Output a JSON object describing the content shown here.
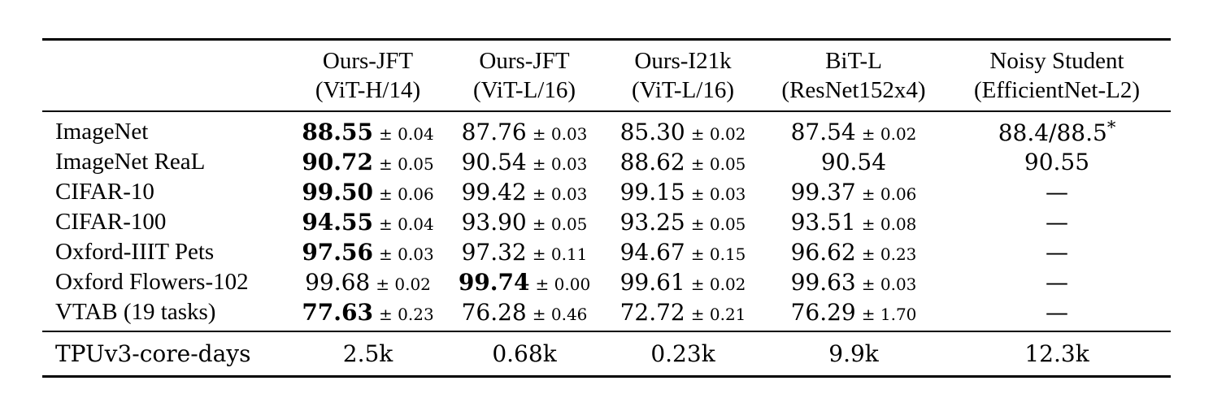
{
  "table": {
    "columns": [
      {
        "line1": "Ours-JFT",
        "line2": "(ViT-H/14)"
      },
      {
        "line1": "Ours-JFT",
        "line2": "(ViT-L/16)"
      },
      {
        "line1": "Ours-I21k",
        "line2": "(ViT-L/16)"
      },
      {
        "line1": "BiT-L",
        "line2": "(ResNet152x4)"
      },
      {
        "line1": "Noisy Student",
        "line2": "(EfficientNet-L2)"
      }
    ],
    "rows": [
      {
        "label": "ImageNet",
        "cells": [
          {
            "main": "88.55",
            "err": "± 0.04",
            "bold": true
          },
          {
            "main": "87.76",
            "err": "± 0.03"
          },
          {
            "main": "85.30",
            "err": "± 0.02"
          },
          {
            "main": "87.54",
            "err": "± 0.02"
          },
          {
            "main": "88.4/88.5",
            "sup": "*"
          }
        ]
      },
      {
        "label": "ImageNet ReaL",
        "cells": [
          {
            "main": "90.72",
            "err": "± 0.05",
            "bold": true
          },
          {
            "main": "90.54",
            "err": "± 0.03"
          },
          {
            "main": "88.62",
            "err": "± 0.05"
          },
          {
            "main": "90.54"
          },
          {
            "main": "90.55"
          }
        ]
      },
      {
        "label": "CIFAR-10",
        "cells": [
          {
            "main": "99.50",
            "err": "± 0.06",
            "bold": true
          },
          {
            "main": "99.42",
            "err": "± 0.03"
          },
          {
            "main": "99.15",
            "err": "± 0.03"
          },
          {
            "main": "99.37",
            "err": "± 0.06"
          },
          {
            "main": "—"
          }
        ]
      },
      {
        "label": "CIFAR-100",
        "cells": [
          {
            "main": "94.55",
            "err": "± 0.04",
            "bold": true
          },
          {
            "main": "93.90",
            "err": "± 0.05"
          },
          {
            "main": "93.25",
            "err": "± 0.05"
          },
          {
            "main": "93.51",
            "err": "± 0.08"
          },
          {
            "main": "—"
          }
        ]
      },
      {
        "label": "Oxford-IIIT Pets",
        "cells": [
          {
            "main": "97.56",
            "err": "± 0.03",
            "bold": true
          },
          {
            "main": "97.32",
            "err": "± 0.11"
          },
          {
            "main": "94.67",
            "err": "± 0.15"
          },
          {
            "main": "96.62",
            "err": "± 0.23"
          },
          {
            "main": "—"
          }
        ]
      },
      {
        "label": "Oxford Flowers-102",
        "cells": [
          {
            "main": "99.68",
            "err": "± 0.02"
          },
          {
            "main": "99.74",
            "err": "± 0.00",
            "bold": true
          },
          {
            "main": "99.61",
            "err": "± 0.02"
          },
          {
            "main": "99.63",
            "err": "± 0.03"
          },
          {
            "main": "—"
          }
        ]
      },
      {
        "label": "VTAB (19 tasks)",
        "cells": [
          {
            "main": "77.63",
            "err": "± 0.23",
            "bold": true
          },
          {
            "main": "76.28",
            "err": "± 0.46"
          },
          {
            "main": "72.72",
            "err": "± 0.21"
          },
          {
            "main": "76.29",
            "err": "± 1.70"
          },
          {
            "main": "—"
          }
        ]
      }
    ],
    "footer": {
      "label": "TPUv3-core-days",
      "values": [
        "2.5k",
        "0.68k",
        "0.23k",
        "9.9k",
        "12.3k"
      ]
    }
  }
}
